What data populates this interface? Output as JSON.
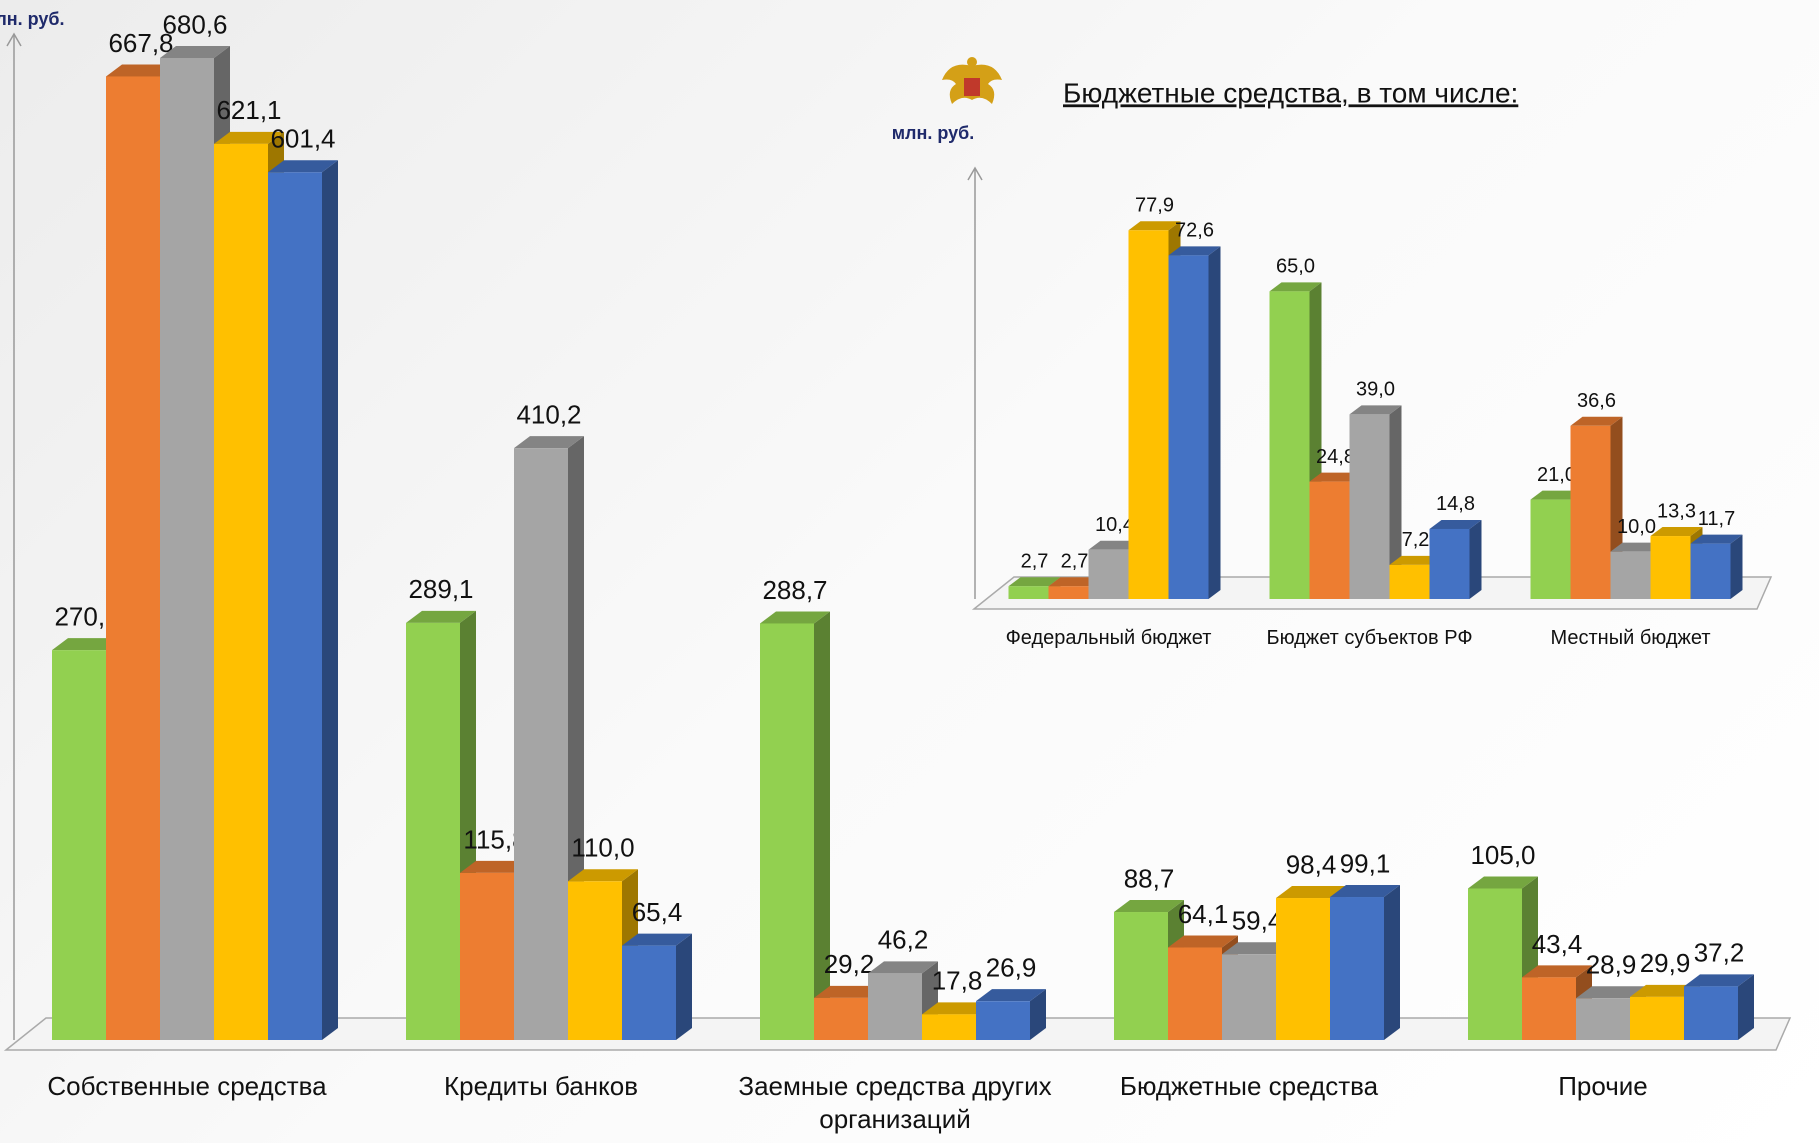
{
  "chart_data": [
    {
      "type": "bar",
      "y_label": "млн. руб.",
      "categories": [
        "Собственные средства",
        "Кредиты банков",
        "Заемные средства других организаций",
        "Бюджетные средства",
        "Прочие"
      ],
      "ylim": [
        0,
        700
      ],
      "series": [
        {
          "color": "#92d050",
          "values": [
            270.2,
            289.1,
            288.7,
            88.7,
            105.0
          ],
          "value_labels": [
            "270,2",
            "289,1",
            "288,7",
            "88,7",
            "105,0"
          ]
        },
        {
          "color": "#ed7d31",
          "values": [
            667.8,
            115.8,
            29.2,
            64.1,
            43.4
          ],
          "value_labels": [
            "667,8",
            "115,8",
            "29,2",
            "64,1",
            "43,4"
          ]
        },
        {
          "color": "#a5a5a5",
          "values": [
            680.6,
            410.2,
            46.2,
            59.4,
            28.9
          ],
          "value_labels": [
            "680,6",
            "410,2",
            "46,2",
            "59,4",
            "28,9"
          ]
        },
        {
          "color": "#ffc000",
          "values": [
            621.1,
            110.0,
            17.8,
            98.4,
            29.9
          ],
          "value_labels": [
            "621,1",
            "110,0",
            "17,8",
            "98,4",
            "29,9"
          ]
        },
        {
          "color": "#4472c4",
          "values": [
            601.4,
            65.4,
            26.9,
            99.1,
            37.2
          ],
          "value_labels": [
            "601,4",
            "65,4",
            "26,9",
            "99,1",
            "37,2"
          ]
        }
      ]
    },
    {
      "type": "bar",
      "title": "Бюджетные средства, в том числе:",
      "y_label": "млн. руб.",
      "categories": [
        "Федеральный бюджет",
        "Бюджет субъектов РФ",
        "Местный бюджет"
      ],
      "ylim": [
        0,
        90
      ],
      "series": [
        {
          "color": "#92d050",
          "values": [
            2.7,
            65.0,
            21.0
          ],
          "value_labels": [
            "2,7",
            "65,0",
            "21,0"
          ]
        },
        {
          "color": "#ed7d31",
          "values": [
            2.7,
            24.8,
            36.6
          ],
          "value_labels": [
            "2,7",
            "24,8",
            "36,6"
          ]
        },
        {
          "color": "#a5a5a5",
          "values": [
            10.4,
            39.0,
            10.0
          ],
          "value_labels": [
            "10,4",
            "39,0",
            "10,0"
          ]
        },
        {
          "color": "#ffc000",
          "values": [
            77.9,
            7.2,
            13.3
          ],
          "value_labels": [
            "77,9",
            "7,2",
            "13,3"
          ]
        },
        {
          "color": "#4472c4",
          "values": [
            72.6,
            14.8,
            11.7
          ],
          "value_labels": [
            "72,6",
            "14,8",
            "11,7"
          ]
        }
      ]
    }
  ]
}
